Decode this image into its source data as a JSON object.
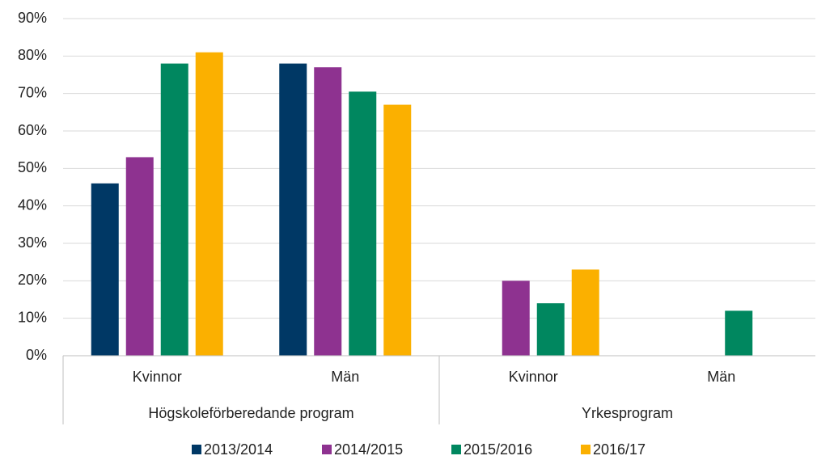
{
  "chart_data": {
    "type": "bar",
    "groups": [
      {
        "name": "Högskoleförberedande program",
        "categories": [
          "Kvinnor",
          "Män"
        ]
      },
      {
        "name": "Yrkesprogram",
        "categories": [
          "Kvinnor",
          "Män"
        ]
      }
    ],
    "series": [
      {
        "name": "2013/2014",
        "color": "#003865",
        "values": [
          46,
          78,
          null,
          null
        ]
      },
      {
        "name": "2014/2015",
        "color": "#8e3290",
        "values": [
          53,
          77,
          20,
          null
        ]
      },
      {
        "name": "2015/2016",
        "color": "#00875f",
        "values": [
          78,
          70.5,
          14,
          12
        ]
      },
      {
        "name": "2016/17",
        "color": "#fbb000",
        "values": [
          81,
          67,
          23,
          null
        ]
      }
    ],
    "ylim": [
      0,
      90
    ],
    "yticks": [
      {
        "value": 0,
        "label": "0%"
      },
      {
        "value": 10,
        "label": "10%"
      },
      {
        "value": 20,
        "label": "20%"
      },
      {
        "value": 30,
        "label": "30%"
      },
      {
        "value": 40,
        "label": "40%"
      },
      {
        "value": 50,
        "label": "50%"
      },
      {
        "value": 60,
        "label": "60%"
      },
      {
        "value": 70,
        "label": "70%"
      },
      {
        "value": 80,
        "label": "80%"
      },
      {
        "value": 90,
        "label": "90%"
      }
    ],
    "grid": true,
    "legend": "bottom"
  }
}
